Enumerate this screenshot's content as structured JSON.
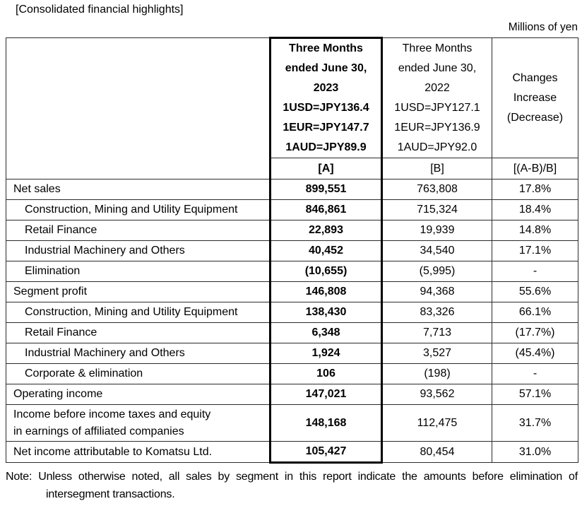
{
  "page": {
    "title": "[Consolidated financial highlights]",
    "units_label": "Millions of yen",
    "note": "Note: Unless otherwise noted, all sales by segment in this report indicate the amounts before elimination of intersegment transactions."
  },
  "table": {
    "header": {
      "col_a_lines": [
        "Three Months",
        "ended June 30,",
        "2023",
        "1USD=JPY136.4",
        "1EUR=JPY147.7",
        "1AUD=JPY89.9"
      ],
      "col_b_lines": [
        "Three Months",
        "ended June 30,",
        "2022",
        "1USD=JPY127.1",
        "1EUR=JPY136.9",
        "1AUD=JPY92.0"
      ],
      "col_c_lines": [
        "Changes",
        "Increase",
        "(Decrease)"
      ],
      "sub_a": "[A]",
      "sub_b": "[B]",
      "sub_c": "[(A-B)/B]"
    },
    "rows": [
      {
        "label": "Net sales",
        "indent": false,
        "tall": false,
        "a": "899,551",
        "b": "763,808",
        "c": "17.8%"
      },
      {
        "label": "Construction, Mining and Utility Equipment",
        "indent": true,
        "tall": false,
        "a": "846,861",
        "b": "715,324",
        "c": "18.4%"
      },
      {
        "label": "Retail Finance",
        "indent": true,
        "tall": false,
        "a": "22,893",
        "b": "19,939",
        "c": "14.8%"
      },
      {
        "label": "Industrial Machinery and Others",
        "indent": true,
        "tall": false,
        "a": "40,452",
        "b": "34,540",
        "c": "17.1%"
      },
      {
        "label": "Elimination",
        "indent": true,
        "tall": false,
        "a": "(10,655)",
        "b": "(5,995)",
        "c": "-"
      },
      {
        "label": "Segment profit",
        "indent": false,
        "tall": false,
        "a": "146,808",
        "b": "94,368",
        "c": "55.6%"
      },
      {
        "label": "Construction, Mining and Utility Equipment",
        "indent": true,
        "tall": false,
        "a": "138,430",
        "b": "83,326",
        "c": "66.1%"
      },
      {
        "label": "Retail Finance",
        "indent": true,
        "tall": false,
        "a": "6,348",
        "b": "7,713",
        "c": "(17.7%)"
      },
      {
        "label": "Industrial Machinery and Others",
        "indent": true,
        "tall": false,
        "a": "1,924",
        "b": "3,527",
        "c": "(45.4%)"
      },
      {
        "label": "Corporate & elimination",
        "indent": true,
        "tall": false,
        "a": "106",
        "b": "(198)",
        "c": "-"
      },
      {
        "label": "Operating income",
        "indent": false,
        "tall": false,
        "a": "147,021",
        "b": "93,562",
        "c": "57.1%"
      },
      {
        "label": "Income before income taxes and equity\nin earnings of affiliated companies",
        "indent": false,
        "tall": true,
        "a": "148,168",
        "b": "112,475",
        "c": "31.7%"
      },
      {
        "label": "Net income attributable to Komatsu Ltd.",
        "indent": false,
        "tall": false,
        "a": "105,427",
        "b": "80,454",
        "c": "31.0%"
      }
    ]
  },
  "colors": {
    "background": "#ffffff",
    "text": "#000000",
    "border_thin": "#2b2b2b",
    "border_thick": "#000000"
  }
}
